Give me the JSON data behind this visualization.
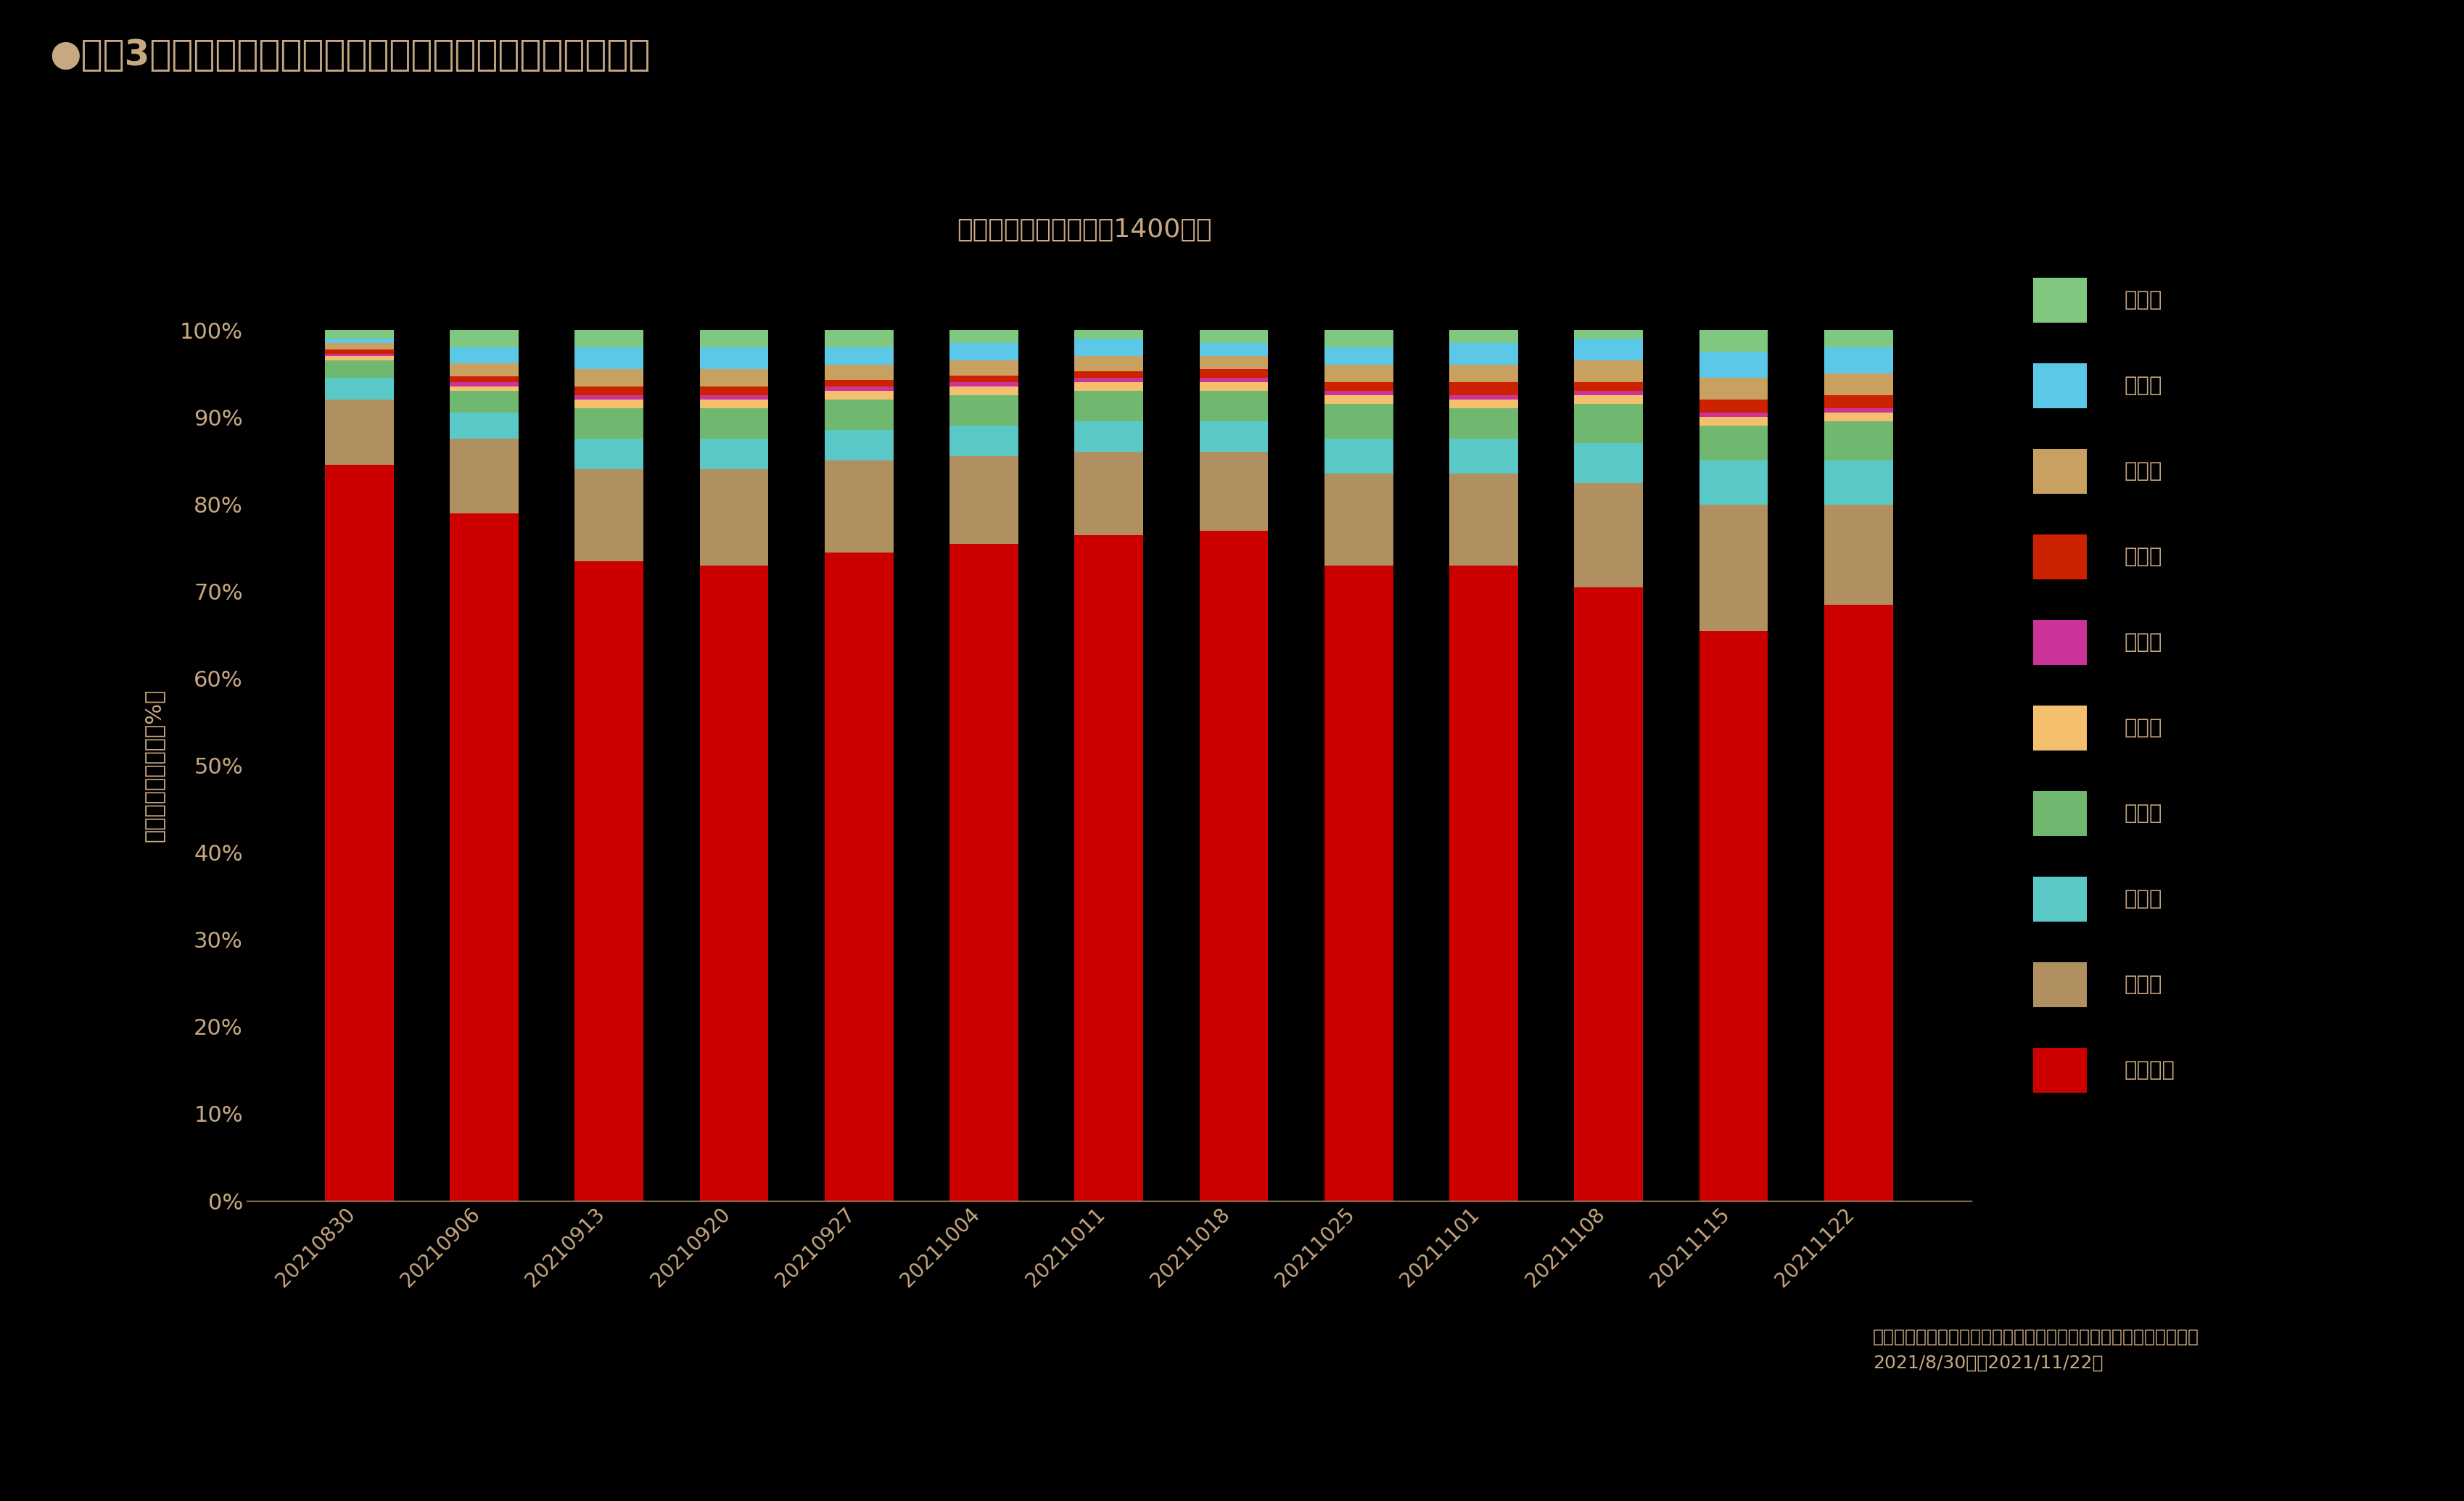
{
  "title": "●直近3ヶ月の休日　鶴岡八幡宮周辺人口居住地構成比推移",
  "subtitle": "鶴岡八幡宮　　休日・1400時台",
  "ylabel": "滞在者人口構成比（%）",
  "footer": "データ：モバイル空間統計・国内人口分布統計（リアルタイム版）\n2021/8/30週～2021/11/22週",
  "background_color": "#000000",
  "text_color": "#c8a882",
  "title_color": "#c8a882",
  "categories": [
    "20210830",
    "20210906",
    "20210913",
    "20210920",
    "20210927",
    "20211004",
    "20211011",
    "20211018",
    "20211025",
    "20211101",
    "20211108",
    "20211115",
    "20211122"
  ],
  "series": [
    {
      "name": "神奈川県",
      "color": "#cc0000",
      "values": [
        84.5,
        79.0,
        73.5,
        73.0,
        74.5,
        75.5,
        76.5,
        77.0,
        73.0,
        73.0,
        70.5,
        65.5,
        68.5
      ]
    },
    {
      "name": "東京都",
      "color": "#b09060",
      "values": [
        7.5,
        8.5,
        10.5,
        11.0,
        10.5,
        10.0,
        9.5,
        9.0,
        10.5,
        10.5,
        12.0,
        14.5,
        11.5
      ]
    },
    {
      "name": "埼玉県",
      "color": "#5bc8c8",
      "values": [
        2.5,
        3.0,
        3.5,
        3.5,
        3.5,
        3.5,
        3.5,
        3.5,
        4.0,
        4.0,
        4.5,
        5.0,
        5.0
      ]
    },
    {
      "name": "千葉県",
      "color": "#70b870",
      "values": [
        2.0,
        2.5,
        3.5,
        3.5,
        3.5,
        3.5,
        3.5,
        3.5,
        4.0,
        3.5,
        4.5,
        4.0,
        4.5
      ]
    },
    {
      "name": "静岡県",
      "color": "#f5c06e",
      "values": [
        0.5,
        0.5,
        1.0,
        1.0,
        1.0,
        1.0,
        1.0,
        1.0,
        1.0,
        1.0,
        1.0,
        1.0,
        1.0
      ]
    },
    {
      "name": "茨城県",
      "color": "#cc3399",
      "values": [
        0.3,
        0.5,
        0.5,
        0.5,
        0.5,
        0.5,
        0.5,
        0.5,
        0.5,
        0.5,
        0.5,
        0.5,
        0.5
      ]
    },
    {
      "name": "愛知県",
      "color": "#cc2200",
      "values": [
        0.5,
        0.7,
        1.0,
        1.0,
        0.8,
        0.8,
        0.8,
        1.0,
        1.0,
        1.5,
        1.0,
        1.5,
        1.5
      ]
    },
    {
      "name": "栃木県",
      "color": "#c8a060",
      "values": [
        0.7,
        1.5,
        2.0,
        2.0,
        1.7,
        1.7,
        1.7,
        1.5,
        2.0,
        2.0,
        2.5,
        2.5,
        2.5
      ]
    },
    {
      "name": "大阪府",
      "color": "#5bc8e8",
      "values": [
        0.5,
        1.8,
        2.5,
        2.5,
        2.0,
        2.0,
        2.0,
        1.5,
        2.0,
        2.5,
        2.5,
        3.0,
        3.0
      ]
    },
    {
      "name": "北海道",
      "color": "#80c880",
      "values": [
        1.0,
        2.0,
        2.0,
        2.0,
        2.0,
        1.5,
        1.0,
        1.5,
        2.0,
        1.5,
        1.0,
        2.5,
        2.0
      ]
    }
  ],
  "legend_items": [
    {
      "name": "北海道",
      "color": "#80c880"
    },
    {
      "name": "大阪府",
      "color": "#5bc8e8"
    },
    {
      "name": "栃木県",
      "color": "#c8a060"
    },
    {
      "name": "愛知県",
      "color": "#cc2200"
    },
    {
      "name": "茨城県",
      "color": "#cc3399"
    },
    {
      "name": "静岡県",
      "color": "#f5c06e"
    },
    {
      "name": "千葉県",
      "color": "#70b870"
    },
    {
      "name": "埼玉県",
      "color": "#5bc8c8"
    },
    {
      "name": "東京都",
      "color": "#b09060"
    },
    {
      "name": "神奈川県",
      "color": "#cc0000"
    }
  ]
}
